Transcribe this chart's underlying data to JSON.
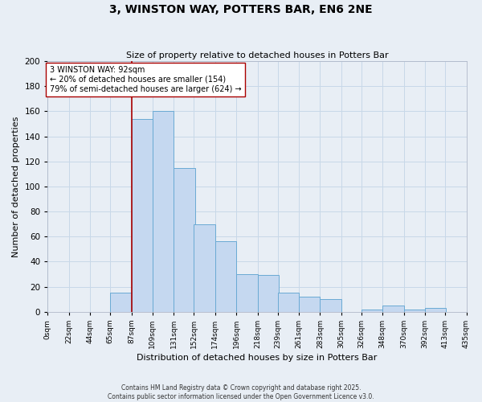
{
  "title": "3, WINSTON WAY, POTTERS BAR, EN6 2NE",
  "subtitle": "Size of property relative to detached houses in Potters Bar",
  "xlabel": "Distribution of detached houses by size in Potters Bar",
  "ylabel": "Number of detached properties",
  "bin_labels": [
    "0sqm",
    "22sqm",
    "44sqm",
    "65sqm",
    "87sqm",
    "109sqm",
    "131sqm",
    "152sqm",
    "174sqm",
    "196sqm",
    "218sqm",
    "239sqm",
    "261sqm",
    "283sqm",
    "305sqm",
    "326sqm",
    "348sqm",
    "370sqm",
    "392sqm",
    "413sqm",
    "435sqm"
  ],
  "bin_starts": [
    0,
    22,
    44,
    65,
    87,
    109,
    131,
    152,
    174,
    196,
    218,
    239,
    261,
    283,
    305,
    326,
    348,
    370,
    392,
    413
  ],
  "bin_width": 22,
  "bar_heights": [
    0,
    0,
    0,
    15,
    154,
    160,
    115,
    70,
    56,
    30,
    29,
    15,
    12,
    10,
    0,
    2,
    5,
    2,
    3,
    0
  ],
  "bar_color": "#c5d8f0",
  "bar_edge_color": "#6aaad4",
  "vline_x": 87,
  "vline_color": "#aa0000",
  "annotation_text": "3 WINSTON WAY: 92sqm\n← 20% of detached houses are smaller (154)\n79% of semi-detached houses are larger (624) →",
  "annotation_box_color": "#ffffff",
  "annotation_box_edge": "#aa0000",
  "ylim": [
    0,
    200
  ],
  "yticks": [
    0,
    20,
    40,
    60,
    80,
    100,
    120,
    140,
    160,
    180,
    200
  ],
  "xlim_start": 0,
  "xlim_end": 435,
  "grid_color": "#c8d8e8",
  "bg_color": "#e8eef5",
  "footer_line1": "Contains HM Land Registry data © Crown copyright and database right 2025.",
  "footer_line2": "Contains public sector information licensed under the Open Government Licence v3.0."
}
